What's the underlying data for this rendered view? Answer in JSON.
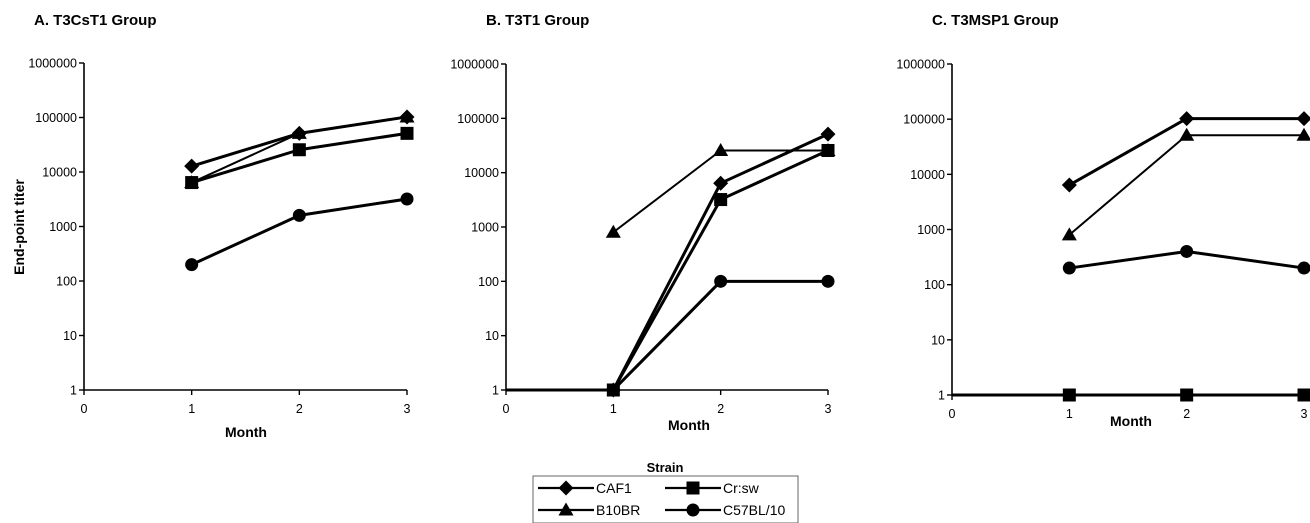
{
  "chart_data": [
    {
      "type": "line",
      "title": "A. T3CsT1 Group",
      "xlabel": "Month",
      "ylabel": "End-point titer",
      "yscale": "log",
      "xlim": [
        0,
        3
      ],
      "ylim": [
        1,
        1000000
      ],
      "xticks": [
        "0",
        "1",
        "2",
        "3"
      ],
      "yticks": [
        "1",
        "10",
        "100",
        "1000",
        "10000",
        "100000",
        "1000000"
      ],
      "grid": false,
      "series": [
        {
          "name": "CAF1",
          "marker": "diamond",
          "x": [
            1,
            2,
            3
          ],
          "y": [
            12800,
            51200,
            102400
          ]
        },
        {
          "name": "Cr:sw",
          "marker": "square",
          "x": [
            1,
            2,
            3
          ],
          "y": [
            6400,
            25600,
            51200
          ]
        },
        {
          "name": "B10BR",
          "marker": "triangle",
          "x": [
            1,
            2,
            3
          ],
          "y": [
            6400,
            51200,
            102400
          ]
        },
        {
          "name": "C57BL/10",
          "marker": "circle",
          "x": [
            1,
            2,
            3
          ],
          "y": [
            200,
            1600,
            3200
          ]
        }
      ]
    },
    {
      "type": "line",
      "title": "B. T3T1 Group",
      "xlabel": "Month",
      "ylabel": "",
      "yscale": "log",
      "xlim": [
        0,
        3
      ],
      "ylim": [
        1,
        1000000
      ],
      "xticks": [
        "0",
        "1",
        "2",
        "3"
      ],
      "yticks": [
        "1",
        "10",
        "100",
        "1000",
        "10000",
        "100000",
        "1000000"
      ],
      "grid": false,
      "series": [
        {
          "name": "CAF1",
          "marker": "diamond",
          "x": [
            0,
            1,
            2,
            3
          ],
          "y": [
            1,
            1,
            6400,
            51200
          ]
        },
        {
          "name": "Cr:sw",
          "marker": "square",
          "x": [
            0,
            1,
            2,
            3
          ],
          "y": [
            1,
            1,
            3200,
            25600
          ]
        },
        {
          "name": "B10BR",
          "marker": "triangle",
          "x": [
            1,
            2,
            3
          ],
          "y": [
            800,
            25600,
            25600
          ]
        },
        {
          "name": "C57BL/10",
          "marker": "circle",
          "x": [
            0,
            1,
            2,
            3
          ],
          "y": [
            1,
            1,
            100,
            100
          ]
        }
      ]
    },
    {
      "type": "line",
      "title": "C. T3MSP1 Group",
      "xlabel": "Month",
      "ylabel": "",
      "yscale": "log",
      "xlim": [
        0,
        3
      ],
      "ylim": [
        1,
        1000000
      ],
      "xticks": [
        "0",
        "1",
        "2",
        "3"
      ],
      "yticks": [
        "1",
        "10",
        "100",
        "1000",
        "10000",
        "100000",
        "1000000"
      ],
      "grid": false,
      "series": [
        {
          "name": "CAF1",
          "marker": "diamond",
          "x": [
            1,
            2,
            3
          ],
          "y": [
            6400,
            102400,
            102400
          ]
        },
        {
          "name": "Cr:sw",
          "marker": "square",
          "x": [
            0,
            1,
            2,
            3
          ],
          "y": [
            1,
            1,
            1,
            1
          ]
        },
        {
          "name": "B10BR",
          "marker": "triangle",
          "x": [
            1,
            2,
            3
          ],
          "y": [
            800,
            51200,
            51200
          ]
        },
        {
          "name": "C57BL/10",
          "marker": "circle",
          "x": [
            1,
            2,
            3
          ],
          "y": [
            200,
            400,
            200
          ]
        }
      ]
    }
  ],
  "legend": {
    "title": "Strain",
    "entries": [
      {
        "name": "CAF1",
        "marker": "diamond"
      },
      {
        "name": "Cr:sw",
        "marker": "square"
      },
      {
        "name": "B10BR",
        "marker": "triangle"
      },
      {
        "name": "C57BL/10",
        "marker": "circle"
      }
    ]
  }
}
